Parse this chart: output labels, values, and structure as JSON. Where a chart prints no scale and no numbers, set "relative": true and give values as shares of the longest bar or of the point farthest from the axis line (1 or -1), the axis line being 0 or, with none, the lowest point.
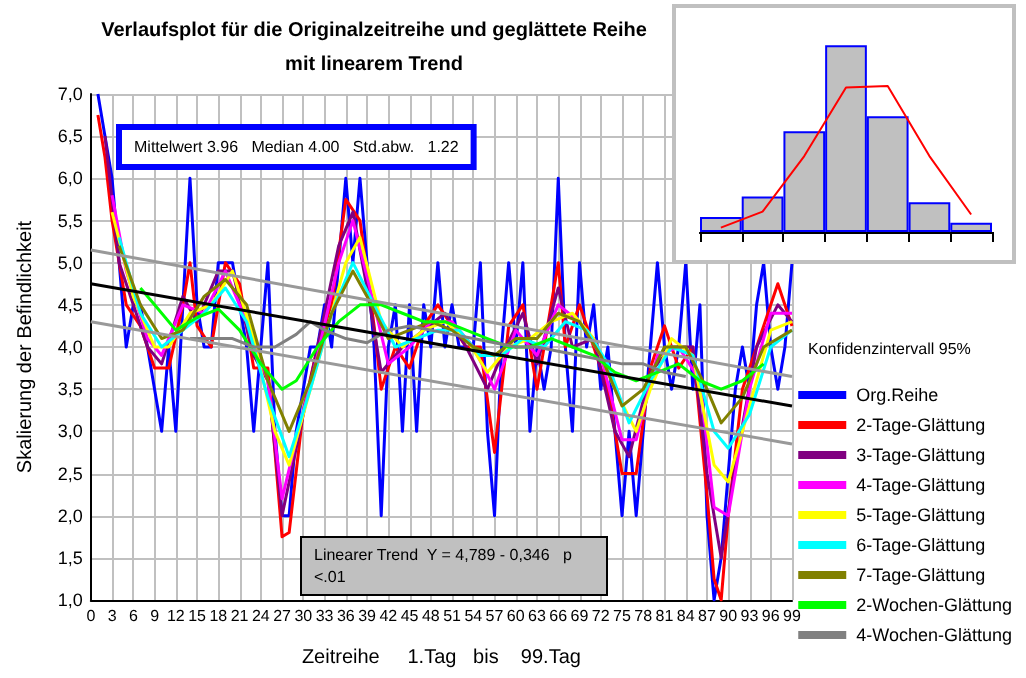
{
  "chart_data": [
    {
      "type": "line",
      "title": "Verlaufsplot für die Originalzeitreihe und geglättete Reihe\nmit linearem Trend",
      "xlabel": "Zeitreihe     1.Tag   bis    99.Tag",
      "ylabel": "Skalierung der Befindlichkeit",
      "annotations": [
        "Mittelwert 3.96   Median 4.00   Std.abw.   1.22",
        "Konfidenzintervall 95%",
        "Linearer Trend  Y = 4,789 - 0,346   p <.01"
      ],
      "xlim": [
        0,
        99
      ],
      "xticks": [
        0,
        3,
        6,
        9,
        12,
        15,
        18,
        21,
        24,
        27,
        30,
        33,
        36,
        39,
        42,
        45,
        48,
        51,
        54,
        57,
        60,
        63,
        66,
        69,
        72,
        75,
        78,
        81,
        84,
        87,
        90,
        93,
        96,
        99
      ],
      "ylim": [
        1,
        7
      ],
      "yticks": [
        {
          "value": 1,
          "label": "1,0"
        },
        {
          "value": 1.5,
          "label": "1,5"
        },
        {
          "value": 2,
          "label": "2,0"
        },
        {
          "value": 2.5,
          "label": "2,5"
        },
        {
          "value": 3,
          "label": "3,0"
        },
        {
          "value": 3.5,
          "label": "3,5"
        },
        {
          "value": 4,
          "label": "4,0"
        },
        {
          "value": 4.5,
          "label": "4,5"
        },
        {
          "value": 5,
          "label": "5,0"
        },
        {
          "value": 5.5,
          "label": "5,5"
        },
        {
          "value": 6,
          "label": "6,0"
        },
        {
          "value": 6.5,
          "label": "6,5"
        },
        {
          "value": 7,
          "label": "7,0"
        }
      ],
      "grid": true,
      "legend": "right",
      "marker": "none",
      "line_style": "solid",
      "series": [
        {
          "name": "Org.Reihe",
          "color": "#0000ff",
          "x": [
            1,
            2,
            3,
            4,
            5,
            6,
            7,
            8,
            9,
            10,
            11,
            12,
            13,
            14,
            15,
            16,
            17,
            18,
            19,
            20,
            21,
            22,
            23,
            24,
            25,
            26,
            27,
            28,
            29,
            30,
            31,
            32,
            33,
            34,
            35,
            36,
            37,
            38,
            39,
            40,
            41,
            42,
            43,
            44,
            45,
            46,
            47,
            48,
            49,
            50,
            51,
            52,
            53,
            54,
            55,
            56,
            57,
            58,
            59,
            60,
            61,
            62,
            63,
            64,
            65,
            66,
            67,
            68,
            69,
            70,
            71,
            72,
            73,
            74,
            75,
            76,
            77,
            78,
            79,
            80,
            81,
            82,
            83,
            84,
            85,
            86,
            87,
            88,
            89,
            90,
            91,
            92,
            93,
            94,
            95,
            96,
            97,
            98,
            99
          ],
          "values": [
            7,
            6.5,
            6,
            5,
            4,
            4.5,
            4.5,
            4,
            3.5,
            3,
            4,
            3,
            4.5,
            6,
            4.5,
            4,
            4,
            5,
            5,
            5,
            4.5,
            4,
            3,
            4,
            5,
            3,
            2,
            2,
            3,
            3.5,
            4,
            4,
            4.5,
            4,
            5,
            6,
            5,
            6,
            5,
            4,
            2,
            4,
            4.5,
            3,
            4.5,
            3,
            4.5,
            4,
            5,
            4,
            4.5,
            4,
            4,
            4,
            5,
            3,
            2,
            4,
            5,
            4,
            5,
            3,
            4,
            3.5,
            4,
            6,
            4,
            3,
            5,
            4,
            4.5,
            3.5,
            4,
            3,
            2,
            3,
            2,
            3,
            4,
            5,
            4,
            3.5,
            4,
            5,
            3.5,
            4.5,
            2,
            1,
            1.5,
            2.5,
            3.5,
            4,
            3.5,
            4.5,
            5,
            4,
            3.5,
            4,
            5
          ]
        },
        {
          "name": "2-Tage-Glättung",
          "color": "#ff0000",
          "x": [
            1,
            2,
            3,
            5,
            7,
            9,
            11,
            13,
            14,
            15,
            17,
            19,
            21,
            23,
            25,
            27,
            28,
            30,
            32,
            34,
            36,
            38,
            40,
            41,
            43,
            45,
            47,
            49,
            51,
            53,
            55,
            57,
            59,
            61,
            63,
            65,
            66,
            67,
            69,
            71,
            73,
            75,
            77,
            79,
            81,
            83,
            85,
            87,
            88,
            89,
            90,
            92,
            94,
            96,
            97,
            99
          ],
          "values": [
            6.75,
            6.25,
            5.5,
            4.5,
            4.25,
            3.75,
            3.75,
            4.5,
            5,
            4.25,
            4,
            5,
            4.75,
            3.75,
            3.75,
            1.75,
            1.8,
            3.25,
            4,
            4.5,
            5.75,
            5.5,
            4.25,
            3.5,
            4,
            3.75,
            4.25,
            4.5,
            4.25,
            4,
            4,
            2.75,
            4.25,
            4.5,
            3.5,
            4.5,
            5,
            4,
            4.5,
            4,
            3.5,
            2.5,
            2.5,
            3.75,
            4.25,
            3.75,
            4,
            2.25,
            1.25,
            1,
            2,
            3.5,
            4,
            4.5,
            4.75,
            4.25
          ]
        },
        {
          "name": "3-Tage-Glättung",
          "color": "#800080",
          "x": [
            2,
            4,
            6,
            8,
            10,
            13,
            15,
            18,
            20,
            23,
            25,
            27,
            29,
            32,
            35,
            37,
            39,
            41,
            44,
            47,
            50,
            53,
            56,
            58,
            61,
            63,
            66,
            68,
            71,
            74,
            76,
            79,
            82,
            85,
            87,
            89,
            91,
            94,
            97,
            99
          ],
          "values": [
            6.5,
            5,
            4.5,
            4,
            3.8,
            4.6,
            4.3,
            4.9,
            4.9,
            3.9,
            3.6,
            2,
            2.8,
            4,
            5.2,
            5.6,
            4.7,
            3.7,
            4,
            4.2,
            4.4,
            4,
            3.5,
            3.9,
            4.4,
            3.8,
            4.7,
            4,
            4.1,
            3,
            2.7,
            3.7,
            4,
            4,
            2.5,
            1.5,
            2.6,
            4,
            4.5,
            4.3
          ]
        },
        {
          "name": "4-Tage-Glättung",
          "color": "#ff00ff",
          "x": [
            3,
            5,
            8,
            10,
            13,
            16,
            19,
            22,
            25,
            27,
            29,
            32,
            35,
            37,
            40,
            42,
            45,
            48,
            51,
            54,
            57,
            60,
            63,
            66,
            69,
            72,
            75,
            77,
            80,
            83,
            86,
            88,
            90,
            93,
            96,
            99
          ],
          "values": [
            5.8,
            4.9,
            4.1,
            3.9,
            4.5,
            4.4,
            4.9,
            4.3,
            3.6,
            2.2,
            2.9,
            3.9,
            5,
            5.5,
            4.5,
            3.8,
            4,
            4.3,
            4.3,
            4,
            3.5,
            4.2,
            3.9,
            4.5,
            4.3,
            3.9,
            2.9,
            2.9,
            3.9,
            4,
            3.6,
            2.1,
            2,
            3.5,
            4.4,
            4.4
          ]
        },
        {
          "name": "5-Tage-Glättung",
          "color": "#ffff00",
          "x": [
            3,
            6,
            9,
            11,
            14,
            17,
            20,
            23,
            26,
            28,
            30,
            33,
            36,
            38,
            41,
            44,
            47,
            50,
            53,
            56,
            59,
            62,
            65,
            68,
            71,
            74,
            77,
            79,
            82,
            85,
            88,
            90,
            93,
            96,
            99
          ],
          "values": [
            5.6,
            4.6,
            4,
            4,
            4.4,
            4.5,
            4.9,
            4.1,
            3,
            2.6,
            3.2,
            4.1,
            5,
            5.3,
            4.3,
            4,
            4.2,
            4.3,
            4.1,
            3.7,
            4,
            4.1,
            4.3,
            4.4,
            4.1,
            3.5,
            3,
            3.5,
            4.1,
            3.9,
            2.6,
            2.4,
            3.3,
            4.2,
            4.3
          ]
        },
        {
          "name": "6-Tage-Glättung",
          "color": "#00ffff",
          "x": [
            4,
            7,
            10,
            13,
            16,
            19,
            22,
            25,
            28,
            31,
            34,
            37,
            40,
            43,
            46,
            49,
            52,
            55,
            58,
            61,
            64,
            67,
            70,
            73,
            76,
            79,
            82,
            85,
            88,
            90,
            93,
            96,
            99
          ],
          "values": [
            5.3,
            4.4,
            4,
            4.2,
            4.4,
            4.7,
            4.3,
            3.4,
            2.7,
            3.5,
            4.4,
            5,
            4.5,
            4,
            4.1,
            4.2,
            4.2,
            3.9,
            3.9,
            4.1,
            4,
            4.3,
            4.2,
            3.8,
            3.1,
            3.6,
            4,
            3.9,
            3,
            2.8,
            3.2,
            4,
            4.2
          ]
        },
        {
          "name": "7-Tage-Glättung",
          "color": "#808000",
          "x": [
            4,
            7,
            10,
            13,
            16,
            19,
            22,
            25,
            28,
            31,
            34,
            37,
            39,
            42,
            45,
            48,
            51,
            54,
            57,
            60,
            63,
            66,
            69,
            72,
            75,
            78,
            81,
            84,
            87,
            89,
            92,
            95,
            99
          ],
          "values": [
            5.2,
            4.5,
            4.1,
            4.2,
            4.6,
            4.8,
            4.5,
            3.6,
            3,
            3.6,
            4.4,
            4.9,
            4.6,
            4.1,
            4.2,
            4.3,
            4.2,
            4,
            3.9,
            4.1,
            4.1,
            4.4,
            4.3,
            3.9,
            3.3,
            3.5,
            4,
            4,
            3.5,
            3.1,
            3.4,
            4,
            4.2
          ]
        },
        {
          "name": "2-Wochen-Glättung",
          "color": "#00ff00",
          "x": [
            7,
            9,
            12,
            15,
            18,
            21,
            24,
            27,
            29,
            32,
            35,
            38,
            41,
            44,
            47,
            50,
            53,
            56,
            59,
            62,
            65,
            68,
            71,
            74,
            77,
            80,
            83,
            86,
            89,
            92,
            95
          ],
          "values": [
            4.7,
            4.5,
            4.2,
            4.35,
            4.45,
            4.2,
            3.8,
            3.5,
            3.6,
            4,
            4.3,
            4.5,
            4.5,
            4.4,
            4.3,
            4.3,
            4.2,
            4.1,
            4,
            4,
            4.1,
            4,
            3.9,
            3.7,
            3.6,
            3.7,
            3.8,
            3.6,
            3.5,
            3.6,
            3.8
          ]
        },
        {
          "name": "4-Wochen-Glättung",
          "color": "#808080",
          "x": [
            14,
            17,
            20,
            23,
            26,
            29,
            31,
            33,
            36,
            39,
            42,
            45,
            48,
            51,
            54,
            57,
            60,
            63,
            66,
            69,
            72,
            75,
            78,
            81,
            84
          ],
          "values": [
            4.1,
            4.1,
            4.1,
            4,
            4,
            4.15,
            4.3,
            4.2,
            4.1,
            4.05,
            4.2,
            4.25,
            4.2,
            4.15,
            4.1,
            4.05,
            4,
            4,
            3.95,
            3.9,
            3.85,
            3.8,
            3.8,
            3.7,
            3.65
          ]
        },
        {
          "color": "#000000",
          "x": [
            0,
            99
          ],
          "values": [
            4.75,
            3.3
          ]
        },
        {
          "color": "#999999",
          "x": [
            0,
            99
          ],
          "values": [
            5.15,
            3.65
          ]
        },
        {
          "color": "#999999",
          "x": [
            0,
            99
          ],
          "values": [
            4.3,
            2.85
          ]
        }
      ]
    },
    {
      "type": "bar",
      "relative": true,
      "categories": [
        null,
        null,
        null,
        null,
        null,
        null,
        null
      ],
      "series": [
        {
          "color": "#c0c0c0",
          "values": [
            0.08,
            0.19,
            0.54,
            1,
            0.62,
            0.16,
            0.05
          ]
        }
      ]
    },
    {
      "type": "line",
      "relative": true,
      "categories": [
        null,
        null,
        null,
        null,
        null,
        null,
        null
      ],
      "series": [
        {
          "color": "#ff0000",
          "values": [
            0.03,
            0.14,
            0.52,
            0.99,
            1,
            0.52,
            0.12
          ]
        }
      ]
    }
  ]
}
